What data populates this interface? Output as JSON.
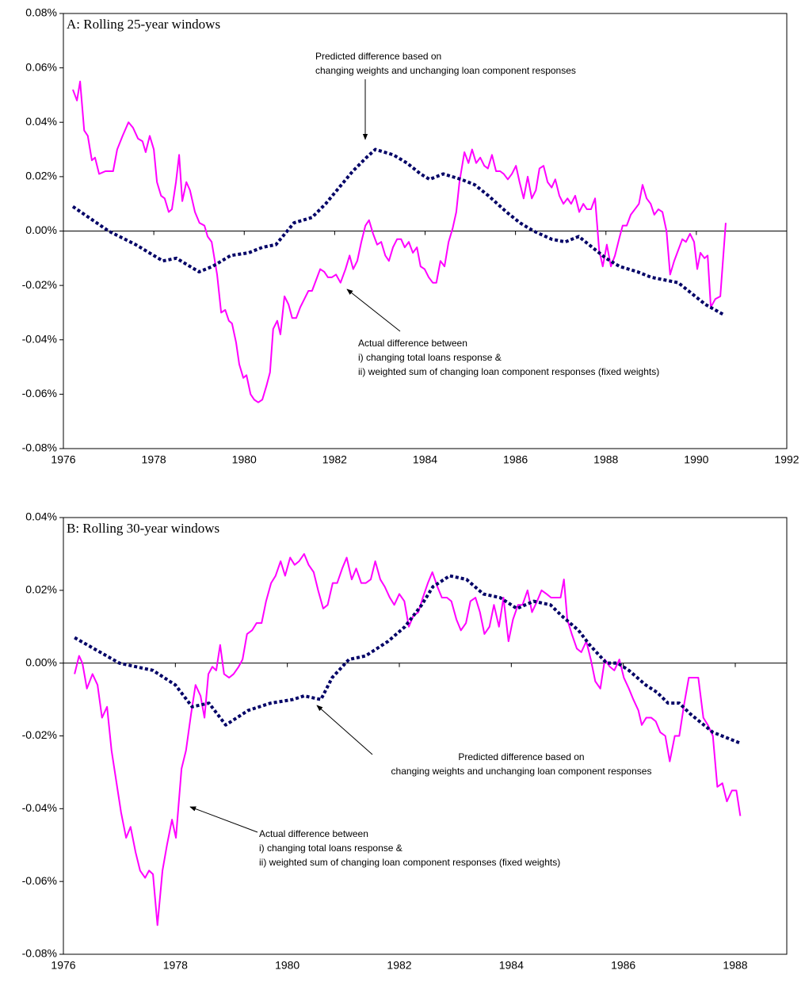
{
  "chart_data": [
    {
      "type": "line",
      "title": "A: Rolling 25-year windows",
      "annotations": [
        [
          "Predicted difference based on",
          "changing weights and unchanging loan component responses"
        ],
        [
          "Actual difference between",
          "i) changing total loans response &",
          "ii) weighted sum of changing loan component responses (fixed weights)"
        ]
      ],
      "xlim": [
        1976,
        1992
      ],
      "xticks": [
        1976,
        1978,
        1980,
        1982,
        1984,
        1986,
        1988,
        1990,
        1992
      ],
      "ylim": [
        -0.08,
        0.08
      ],
      "yticks": [
        {
          "value": -0.08,
          "label": "-0.08%"
        },
        {
          "value": -0.06,
          "label": "-0.06%"
        },
        {
          "value": -0.04,
          "label": "-0.04%"
        },
        {
          "value": -0.02,
          "label": "-0.02%"
        },
        {
          "value": 0,
          "label": "0.00%"
        },
        {
          "value": 0.02,
          "label": "0.02%"
        },
        {
          "value": 0.04,
          "label": "0.04%"
        },
        {
          "value": 0.06,
          "label": "0.06%"
        },
        {
          "value": 0.08,
          "label": "0.08%"
        }
      ],
      "series": [
        {
          "color": "#ff00ff",
          "line_style": "solid",
          "x": [
            1976.21,
            1976.3,
            1976.37,
            1976.46,
            1976.54,
            1976.63,
            1976.7,
            1976.79,
            1976.93,
            1977.1,
            1977.19,
            1977.31,
            1977.44,
            1977.54,
            1977.65,
            1977.75,
            1977.82,
            1977.91,
            1978.0,
            1978.07,
            1978.16,
            1978.24,
            1978.33,
            1978.4,
            1978.49,
            1978.56,
            1978.63,
            1978.72,
            1978.8,
            1978.91,
            1979.01,
            1979.12,
            1979.19,
            1979.28,
            1979.4,
            1979.49,
            1979.58,
            1979.66,
            1979.73,
            1979.82,
            1979.89,
            1979.98,
            1980.05,
            1980.14,
            1980.22,
            1980.31,
            1980.4,
            1980.49,
            1980.57,
            1980.64,
            1980.73,
            1980.8,
            1980.89,
            1980.98,
            1981.06,
            1981.15,
            1981.24,
            1981.33,
            1981.42,
            1981.5,
            1981.59,
            1981.68,
            1981.77,
            1981.85,
            1981.94,
            1982.03,
            1982.13,
            1982.24,
            1982.33,
            1982.41,
            1982.5,
            1982.59,
            1982.68,
            1982.76,
            1982.85,
            1982.94,
            1983.03,
            1983.12,
            1983.2,
            1983.29,
            1983.38,
            1983.47,
            1983.55,
            1983.64,
            1983.73,
            1983.82,
            1983.9,
            1983.99,
            1984.08,
            1984.17,
            1984.25,
            1984.34,
            1984.43,
            1984.52,
            1984.61,
            1984.69,
            1984.76,
            1984.87,
            1984.96,
            1985.04,
            1985.13,
            1985.22,
            1985.31,
            1985.39,
            1985.48,
            1985.57,
            1985.66,
            1985.74,
            1985.83,
            1985.92,
            1986.01,
            1986.09,
            1986.18,
            1986.27,
            1986.36,
            1986.45,
            1986.53,
            1986.62,
            1986.71,
            1986.8,
            1986.88,
            1986.97,
            1987.06,
            1987.15,
            1987.23,
            1987.32,
            1987.41,
            1987.5,
            1987.58,
            1987.67,
            1987.76,
            1987.85,
            1987.93,
            1988.02,
            1988.11,
            1988.2,
            1988.29,
            1988.37,
            1988.46,
            1988.55,
            1988.64,
            1988.73,
            1988.81,
            1988.9,
            1988.99,
            1989.07,
            1989.16,
            1989.25,
            1989.34,
            1989.42,
            1989.51,
            1989.6,
            1989.69,
            1989.77,
            1989.86,
            1989.95,
            1990.02,
            1990.09,
            1990.18,
            1990.25,
            1990.32,
            1990.42,
            1990.53,
            1990.65
          ],
          "values": [
            0.052,
            0.048,
            0.055,
            0.037,
            0.035,
            0.026,
            0.027,
            0.021,
            0.022,
            0.022,
            0.03,
            0.035,
            0.04,
            0.038,
            0.034,
            0.033,
            0.029,
            0.035,
            0.03,
            0.018,
            0.013,
            0.012,
            0.007,
            0.008,
            0.018,
            0.028,
            0.011,
            0.018,
            0.015,
            0.007,
            0.003,
            0.002,
            -0.002,
            -0.004,
            -0.016,
            -0.03,
            -0.029,
            -0.033,
            -0.034,
            -0.041,
            -0.049,
            -0.054,
            -0.053,
            -0.06,
            -0.062,
            -0.063,
            -0.062,
            -0.057,
            -0.052,
            -0.036,
            -0.033,
            -0.038,
            -0.024,
            -0.027,
            -0.032,
            -0.032,
            -0.028,
            -0.025,
            -0.022,
            -0.022,
            -0.018,
            -0.014,
            -0.015,
            -0.017,
            -0.017,
            -0.016,
            -0.019,
            -0.014,
            -0.009,
            -0.014,
            -0.011,
            -0.004,
            0.002,
            0.004,
            -0.001,
            -0.005,
            -0.004,
            -0.009,
            -0.011,
            -0.006,
            -0.003,
            -0.003,
            -0.006,
            -0.004,
            -0.008,
            -0.006,
            -0.013,
            -0.014,
            -0.017,
            -0.019,
            -0.019,
            -0.011,
            -0.013,
            -0.004,
            0.001,
            0.007,
            0.018,
            0.029,
            0.025,
            0.03,
            0.025,
            0.027,
            0.024,
            0.023,
            0.028,
            0.022,
            0.022,
            0.021,
            0.019,
            0.021,
            0.024,
            0.018,
            0.012,
            0.02,
            0.012,
            0.015,
            0.023,
            0.024,
            0.018,
            0.016,
            0.019,
            0.013,
            0.01,
            0.012,
            0.01,
            0.013,
            0.007,
            0.01,
            0.008,
            0.008,
            0.012,
            -0.007,
            -0.013,
            -0.005,
            -0.013,
            -0.009,
            -0.003,
            0.002,
            0.002,
            0.006,
            0.008,
            0.01,
            0.017,
            0.012,
            0.01,
            0.006,
            0.008,
            0.007,
            0.0,
            -0.016,
            -0.011,
            -0.007,
            -0.003,
            -0.004,
            -0.001,
            -0.004,
            -0.014,
            -0.008,
            -0.01,
            -0.009,
            -0.028,
            -0.025,
            -0.024,
            0.003
          ]
        },
        {
          "color": "#000066",
          "line_style": "dotted",
          "x": [
            1976.21,
            1977.0,
            1977.6,
            1978.2,
            1978.5,
            1979.0,
            1979.3,
            1979.7,
            1980.1,
            1980.4,
            1980.7,
            1981.1,
            1981.5,
            1981.8,
            1982.1,
            1982.4,
            1982.7,
            1982.9,
            1983.3,
            1983.6,
            1983.9,
            1984.1,
            1984.4,
            1984.8,
            1985.1,
            1985.4,
            1985.8,
            1986.1,
            1986.4,
            1986.8,
            1987.1,
            1987.4,
            1987.7,
            1988.0,
            1988.3,
            1988.7,
            1989.0,
            1989.3,
            1989.6,
            1989.9,
            1990.2,
            1990.63
          ],
          "values": [
            0.009,
            0.0,
            -0.005,
            -0.011,
            -0.01,
            -0.015,
            -0.013,
            -0.009,
            -0.008,
            -0.006,
            -0.005,
            0.003,
            0.005,
            0.01,
            0.016,
            0.022,
            0.027,
            0.03,
            0.028,
            0.025,
            0.021,
            0.019,
            0.021,
            0.019,
            0.017,
            0.013,
            0.007,
            0.003,
            0.0,
            -0.003,
            -0.004,
            -0.002,
            -0.006,
            -0.01,
            -0.013,
            -0.015,
            -0.017,
            -0.018,
            -0.019,
            -0.023,
            -0.027,
            -0.031
          ]
        }
      ]
    },
    {
      "type": "line",
      "title": "B: Rolling 30-year windows",
      "annotations": [
        [
          "Predicted difference based on",
          "changing weights and unchanging loan component responses"
        ],
        [
          "Actual difference between",
          "i) changing total loans response &",
          "ii) weighted sum of changing loan component responses (fixed weights)"
        ]
      ],
      "xlim": [
        1976,
        1988.92
      ],
      "xticks": [
        1976,
        1978,
        1980,
        1982,
        1984,
        1986,
        1988
      ],
      "ylim": [
        -0.08,
        0.04
      ],
      "yticks": [
        {
          "value": -0.08,
          "label": "-0.08%"
        },
        {
          "value": -0.06,
          "label": "-0.06%"
        },
        {
          "value": -0.04,
          "label": "-0.04%"
        },
        {
          "value": -0.02,
          "label": "-0.02%"
        },
        {
          "value": 0,
          "label": "0.00%"
        },
        {
          "value": 0.02,
          "label": "0.02%"
        },
        {
          "value": 0.04,
          "label": "0.04%"
        }
      ],
      "series": [
        {
          "color": "#ff00ff",
          "line_style": "solid",
          "x": [
            1976.2,
            1976.28,
            1976.34,
            1976.42,
            1976.52,
            1976.61,
            1976.69,
            1976.78,
            1976.86,
            1976.95,
            1977.03,
            1977.12,
            1977.2,
            1977.29,
            1977.37,
            1977.46,
            1977.53,
            1977.6,
            1977.68,
            1977.77,
            1977.85,
            1977.94,
            1978.01,
            1978.11,
            1978.19,
            1978.28,
            1978.36,
            1978.45,
            1978.52,
            1978.59,
            1978.66,
            1978.73,
            1978.8,
            1978.87,
            1978.96,
            1979.04,
            1979.13,
            1979.2,
            1979.28,
            1979.37,
            1979.45,
            1979.54,
            1979.62,
            1979.71,
            1979.79,
            1979.88,
            1979.96,
            1980.05,
            1980.13,
            1980.21,
            1980.3,
            1980.38,
            1980.47,
            1980.55,
            1980.64,
            1980.72,
            1980.81,
            1980.89,
            1980.98,
            1981.06,
            1981.15,
            1981.23,
            1981.32,
            1981.4,
            1981.49,
            1981.57,
            1981.66,
            1981.74,
            1981.83,
            1981.91,
            1982.0,
            1982.09,
            1982.17,
            1982.25,
            1982.34,
            1982.42,
            1982.51,
            1982.59,
            1982.68,
            1982.76,
            1982.85,
            1982.93,
            1983.02,
            1983.1,
            1983.19,
            1983.27,
            1983.36,
            1983.44,
            1983.52,
            1983.61,
            1983.69,
            1983.78,
            1983.86,
            1983.95,
            1984.03,
            1984.12,
            1984.2,
            1984.29,
            1984.37,
            1984.46,
            1984.54,
            1984.63,
            1984.71,
            1984.8,
            1984.88,
            1984.94,
            1985.0,
            1985.08,
            1985.17,
            1985.25,
            1985.34,
            1985.42,
            1985.5,
            1985.59,
            1985.67,
            1985.76,
            1985.84,
            1985.93,
            1986.01,
            1986.1,
            1986.18,
            1986.27,
            1986.33,
            1986.41,
            1986.5,
            1986.58,
            1986.66,
            1986.75,
            1986.83,
            1986.92,
            1987.0,
            1987.09,
            1987.17,
            1987.26,
            1987.34,
            1987.43,
            1987.51,
            1987.6,
            1987.68,
            1987.77,
            1987.85,
            1987.94,
            1988.02,
            1988.09
          ],
          "values": [
            -0.003,
            0.002,
            0.0,
            -0.007,
            -0.003,
            -0.006,
            -0.015,
            -0.012,
            -0.024,
            -0.033,
            -0.041,
            -0.048,
            -0.045,
            -0.052,
            -0.057,
            -0.059,
            -0.057,
            -0.058,
            -0.072,
            -0.057,
            -0.05,
            -0.043,
            -0.048,
            -0.029,
            -0.024,
            -0.014,
            -0.006,
            -0.009,
            -0.015,
            -0.003,
            -0.001,
            -0.002,
            0.005,
            -0.003,
            -0.004,
            -0.003,
            -0.001,
            0.001,
            0.008,
            0.009,
            0.011,
            0.011,
            0.017,
            0.022,
            0.024,
            0.028,
            0.024,
            0.029,
            0.027,
            0.028,
            0.03,
            0.027,
            0.025,
            0.02,
            0.015,
            0.016,
            0.022,
            0.022,
            0.026,
            0.029,
            0.023,
            0.026,
            0.022,
            0.022,
            0.023,
            0.028,
            0.023,
            0.021,
            0.018,
            0.016,
            0.019,
            0.017,
            0.01,
            0.013,
            0.014,
            0.018,
            0.022,
            0.025,
            0.021,
            0.018,
            0.018,
            0.017,
            0.012,
            0.009,
            0.011,
            0.017,
            0.018,
            0.014,
            0.008,
            0.01,
            0.016,
            0.01,
            0.018,
            0.006,
            0.012,
            0.016,
            0.016,
            0.02,
            0.014,
            0.017,
            0.02,
            0.019,
            0.018,
            0.018,
            0.018,
            0.023,
            0.012,
            0.008,
            0.004,
            0.003,
            0.006,
            0.001,
            -0.005,
            -0.007,
            0.001,
            -0.001,
            -0.002,
            0.001,
            -0.004,
            -0.007,
            -0.01,
            -0.013,
            -0.017,
            -0.015,
            -0.015,
            -0.016,
            -0.019,
            -0.02,
            -0.027,
            -0.02,
            -0.02,
            -0.011,
            -0.004,
            -0.004,
            -0.004,
            -0.015,
            -0.017,
            -0.02,
            -0.034,
            -0.033,
            -0.038,
            -0.035,
            -0.035,
            -0.042
          ]
        },
        {
          "color": "#000066",
          "line_style": "dotted",
          "x": [
            1976.2,
            1977.0,
            1977.6,
            1978.0,
            1978.3,
            1978.6,
            1978.9,
            1979.3,
            1979.7,
            1980.1,
            1980.3,
            1980.6,
            1980.8,
            1981.1,
            1981.4,
            1981.8,
            1982.1,
            1982.4,
            1982.6,
            1982.9,
            1983.2,
            1983.5,
            1983.8,
            1984.1,
            1984.4,
            1984.7,
            1984.9,
            1985.2,
            1985.4,
            1985.7,
            1985.9,
            1986.1,
            1986.4,
            1986.6,
            1986.8,
            1987.0,
            1987.2,
            1987.6,
            1988.09
          ],
          "values": [
            0.007,
            0.0,
            -0.002,
            -0.006,
            -0.012,
            -0.011,
            -0.017,
            -0.013,
            -0.011,
            -0.01,
            -0.009,
            -0.01,
            -0.004,
            0.001,
            0.002,
            0.006,
            0.01,
            0.016,
            0.021,
            0.024,
            0.023,
            0.019,
            0.018,
            0.015,
            0.017,
            0.016,
            0.013,
            0.009,
            0.005,
            0.0,
            0.0,
            -0.002,
            -0.006,
            -0.008,
            -0.011,
            -0.011,
            -0.014,
            -0.019,
            -0.022
          ]
        }
      ]
    }
  ]
}
